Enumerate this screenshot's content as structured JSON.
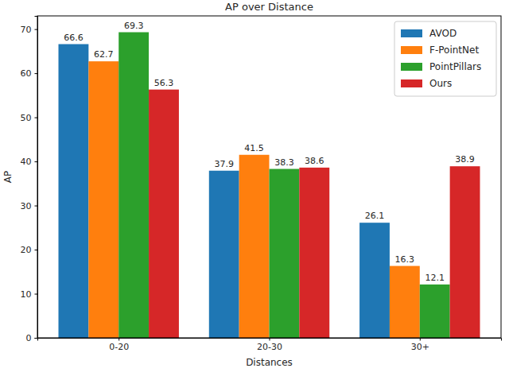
{
  "chart_data": {
    "type": "bar",
    "title": "AP over Distance",
    "x_label": "Distances",
    "y_label": "AP",
    "categories": [
      "0-20",
      "20-30",
      "30+"
    ],
    "series": [
      {
        "name": "AVOD",
        "color": "#1f77b4",
        "values": [
          66.6,
          37.9,
          26.1
        ]
      },
      {
        "name": "F-PointNet",
        "color": "#ff7f0e",
        "values": [
          62.7,
          41.5,
          16.3
        ]
      },
      {
        "name": "PointPillars",
        "color": "#2ca02c",
        "values": [
          69.3,
          38.3,
          12.1
        ]
      },
      {
        "name": "Ours",
        "color": "#d62728",
        "values": [
          56.3,
          38.6,
          38.9
        ]
      }
    ],
    "ylim": [
      0,
      73
    ],
    "yticks": [
      0,
      10,
      20,
      30,
      40,
      50,
      60,
      70
    ],
    "grid": false,
    "legend": "upper right",
    "data_labels": true
  }
}
